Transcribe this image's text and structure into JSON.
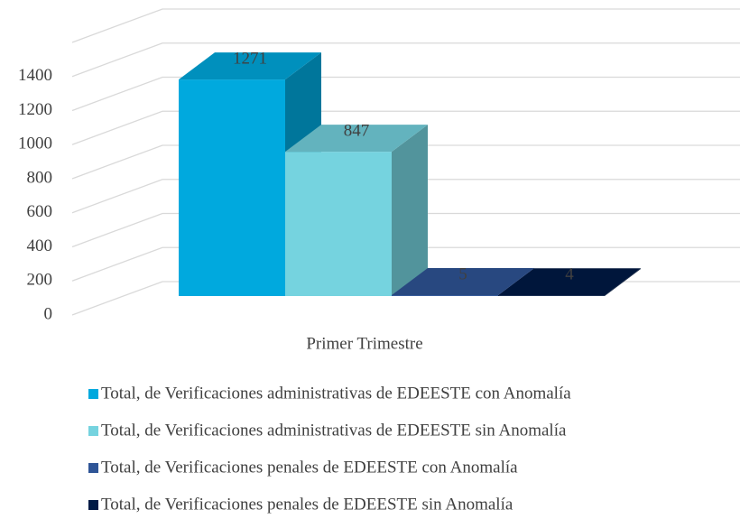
{
  "chart_data": {
    "type": "bar3d",
    "categories": [
      "Primer Trimestre"
    ],
    "series": [
      {
        "name": "Total, de Verificaciones administrativas de EDEESTE con Anomalía",
        "color": "#00a9de",
        "values": [
          1271
        ]
      },
      {
        "name": "Total, de Verificaciones administrativas de EDEESTE sin Anomalía",
        "color": "#75d3df",
        "values": [
          847
        ]
      },
      {
        "name": "Total, de Verificaciones penales de EDEESTE con Anomalía",
        "color": "#2f5597",
        "values": [
          5
        ]
      },
      {
        "name": "Total, de Verificaciones penales de EDEESTE sin Anomalía",
        "color": "#001a45",
        "values": [
          4
        ]
      }
    ],
    "ylim": [
      0,
      1600
    ],
    "yticks": [
      0,
      200,
      400,
      600,
      800,
      1000,
      1200,
      1400
    ],
    "grid": true,
    "legend": "bottom"
  }
}
